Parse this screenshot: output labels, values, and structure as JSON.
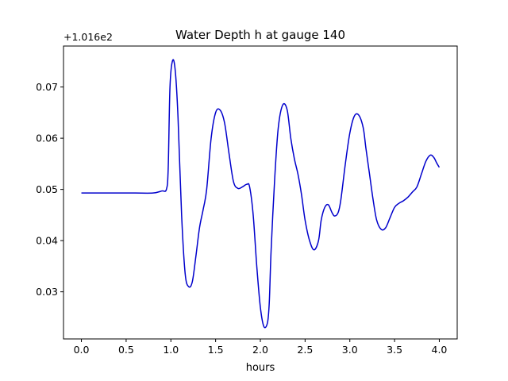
{
  "chart_data": {
    "type": "line",
    "title": "Water Depth h at gauge 140",
    "xlabel": "hours",
    "ylabel": "",
    "y_offset_label": "+1.016e2",
    "xlim": [
      -0.2,
      4.2
    ],
    "ylim": [
      0.0208,
      0.078
    ],
    "x_ticks": [
      0.0,
      0.5,
      1.0,
      1.5,
      2.0,
      2.5,
      3.0,
      3.5,
      4.0
    ],
    "x_tick_labels": [
      "0.0",
      "0.5",
      "1.0",
      "1.5",
      "2.0",
      "2.5",
      "3.0",
      "3.5",
      "4.0"
    ],
    "y_ticks": [
      0.03,
      0.04,
      0.05,
      0.06,
      0.07
    ],
    "y_tick_labels": [
      "0.03",
      "0.04",
      "0.05",
      "0.06",
      "0.07"
    ],
    "grid": false,
    "series": [
      {
        "color": "#0000cc",
        "x": [
          0.0,
          0.2,
          0.4,
          0.6,
          0.8,
          0.9,
          0.95,
          0.97,
          0.99,
          1.02,
          1.05,
          1.08,
          1.12,
          1.16,
          1.2,
          1.24,
          1.28,
          1.32,
          1.36,
          1.4,
          1.45,
          1.5,
          1.55,
          1.6,
          1.65,
          1.7,
          1.75,
          1.8,
          1.85,
          1.88,
          1.92,
          1.96,
          2.0,
          2.04,
          2.08,
          2.1,
          2.12,
          2.16,
          2.2,
          2.25,
          2.3,
          2.34,
          2.38,
          2.42,
          2.46,
          2.5,
          2.55,
          2.6,
          2.65,
          2.68,
          2.72,
          2.76,
          2.8,
          2.83,
          2.87,
          2.9,
          2.95,
          3.0,
          3.05,
          3.1,
          3.15,
          3.18,
          3.22,
          3.26,
          3.3,
          3.35,
          3.4,
          3.45,
          3.5,
          3.55,
          3.6,
          3.65,
          3.7,
          3.75,
          3.8,
          3.85,
          3.9,
          3.94,
          3.97,
          4.0
        ],
        "y": [
          0.0493,
          0.0493,
          0.0493,
          0.0493,
          0.0493,
          0.0497,
          0.05,
          0.054,
          0.07,
          0.0752,
          0.073,
          0.064,
          0.045,
          0.0335,
          0.031,
          0.032,
          0.037,
          0.0425,
          0.046,
          0.05,
          0.06,
          0.065,
          0.0655,
          0.063,
          0.057,
          0.0515,
          0.0502,
          0.0505,
          0.051,
          0.0505,
          0.045,
          0.035,
          0.027,
          0.0232,
          0.024,
          0.028,
          0.038,
          0.052,
          0.062,
          0.0665,
          0.0655,
          0.06,
          0.056,
          0.053,
          0.049,
          0.044,
          0.04,
          0.0382,
          0.04,
          0.044,
          0.0465,
          0.047,
          0.0455,
          0.0448,
          0.0455,
          0.048,
          0.055,
          0.061,
          0.0643,
          0.0645,
          0.062,
          0.058,
          0.053,
          0.048,
          0.044,
          0.0422,
          0.0425,
          0.0445,
          0.0465,
          0.0473,
          0.0478,
          0.0485,
          0.0495,
          0.0505,
          0.053,
          0.0555,
          0.0567,
          0.0562,
          0.0552,
          0.0543
        ]
      }
    ]
  }
}
